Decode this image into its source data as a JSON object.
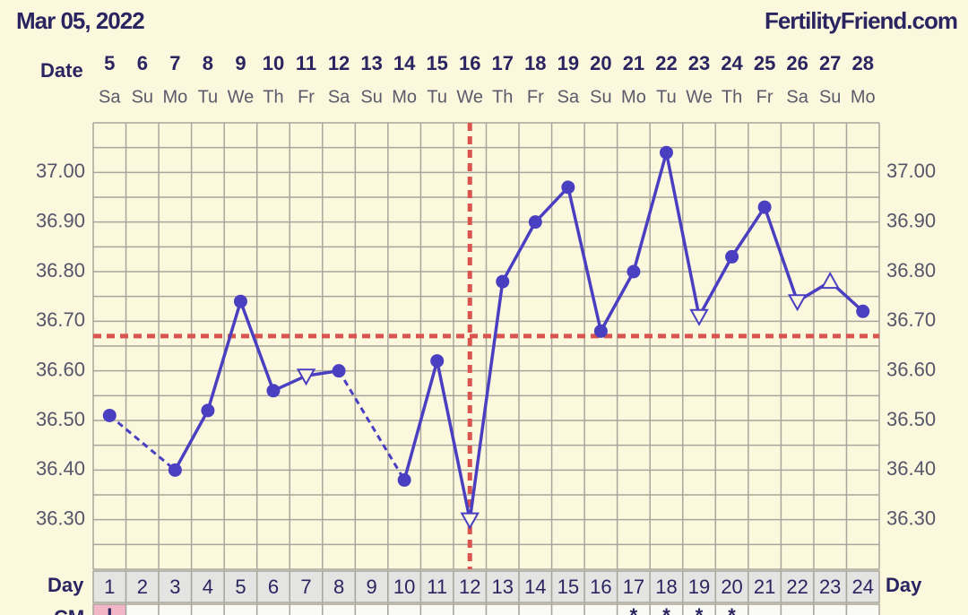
{
  "chart_data": {
    "type": "line",
    "title": "Mar 05, 2022",
    "brand": "FertilityFriend.com",
    "date_label": "Date",
    "day_label": "Day",
    "cm_label": "CM",
    "dates": [
      "5",
      "6",
      "7",
      "8",
      "9",
      "10",
      "11",
      "12",
      "13",
      "14",
      "15",
      "16",
      "17",
      "18",
      "19",
      "20",
      "21",
      "22",
      "23",
      "24",
      "25",
      "26",
      "27",
      "28"
    ],
    "weekdays": [
      "Sa",
      "Su",
      "Mo",
      "Tu",
      "We",
      "Th",
      "Fr",
      "Sa",
      "Su",
      "Mo",
      "Tu",
      "We",
      "Th",
      "Fr",
      "Sa",
      "Su",
      "Mo",
      "Tu",
      "We",
      "Th",
      "Fr",
      "Sa",
      "Su",
      "Mo"
    ],
    "categories": [
      "1",
      "2",
      "3",
      "4",
      "5",
      "6",
      "7",
      "8",
      "9",
      "10",
      "11",
      "12",
      "13",
      "14",
      "15",
      "16",
      "17",
      "18",
      "19",
      "20",
      "21",
      "22",
      "23",
      "24"
    ],
    "cm": [
      "I",
      null,
      null,
      null,
      null,
      null,
      null,
      null,
      null,
      null,
      null,
      null,
      null,
      null,
      null,
      null,
      "*",
      "*",
      "*",
      "*",
      null,
      null,
      null,
      null
    ],
    "series": [
      {
        "color": "#4a3fc0",
        "values": [
          36.51,
          null,
          36.4,
          36.52,
          36.74,
          36.56,
          36.59,
          36.6,
          null,
          36.38,
          36.62,
          36.3,
          36.78,
          36.9,
          36.97,
          36.68,
          36.8,
          37.04,
          36.71,
          36.83,
          36.93,
          36.74,
          36.78,
          36.72
        ],
        "markers": [
          "circle",
          null,
          "circle",
          "circle",
          "circle",
          "circle",
          "triangle-down",
          "circle",
          null,
          "circle",
          "circle",
          "triangle-down",
          "circle",
          "circle",
          "circle",
          "circle",
          "circle",
          "circle",
          "triangle-down",
          "circle",
          "circle",
          "triangle-down",
          "triangle-up",
          "circle"
        ]
      }
    ],
    "ylim": [
      36.2,
      37.1
    ],
    "yticks": [
      {
        "value": 37.0,
        "label": "37.00"
      },
      {
        "value": 36.9,
        "label": "36.90"
      },
      {
        "value": 36.8,
        "label": "36.80"
      },
      {
        "value": 36.7,
        "label": "36.70"
      },
      {
        "value": 36.6,
        "label": "36.60"
      },
      {
        "value": 36.5,
        "label": "36.50"
      },
      {
        "value": 36.4,
        "label": "36.40"
      },
      {
        "value": 36.3,
        "label": "36.30"
      }
    ],
    "minor_yticks": [
      37.05,
      36.95,
      36.85,
      36.75,
      36.65,
      36.55,
      36.45,
      36.35,
      36.25
    ],
    "coverline": 36.67,
    "coverline_color": "#d9534f",
    "ovulation_day": 12,
    "grid": true
  }
}
